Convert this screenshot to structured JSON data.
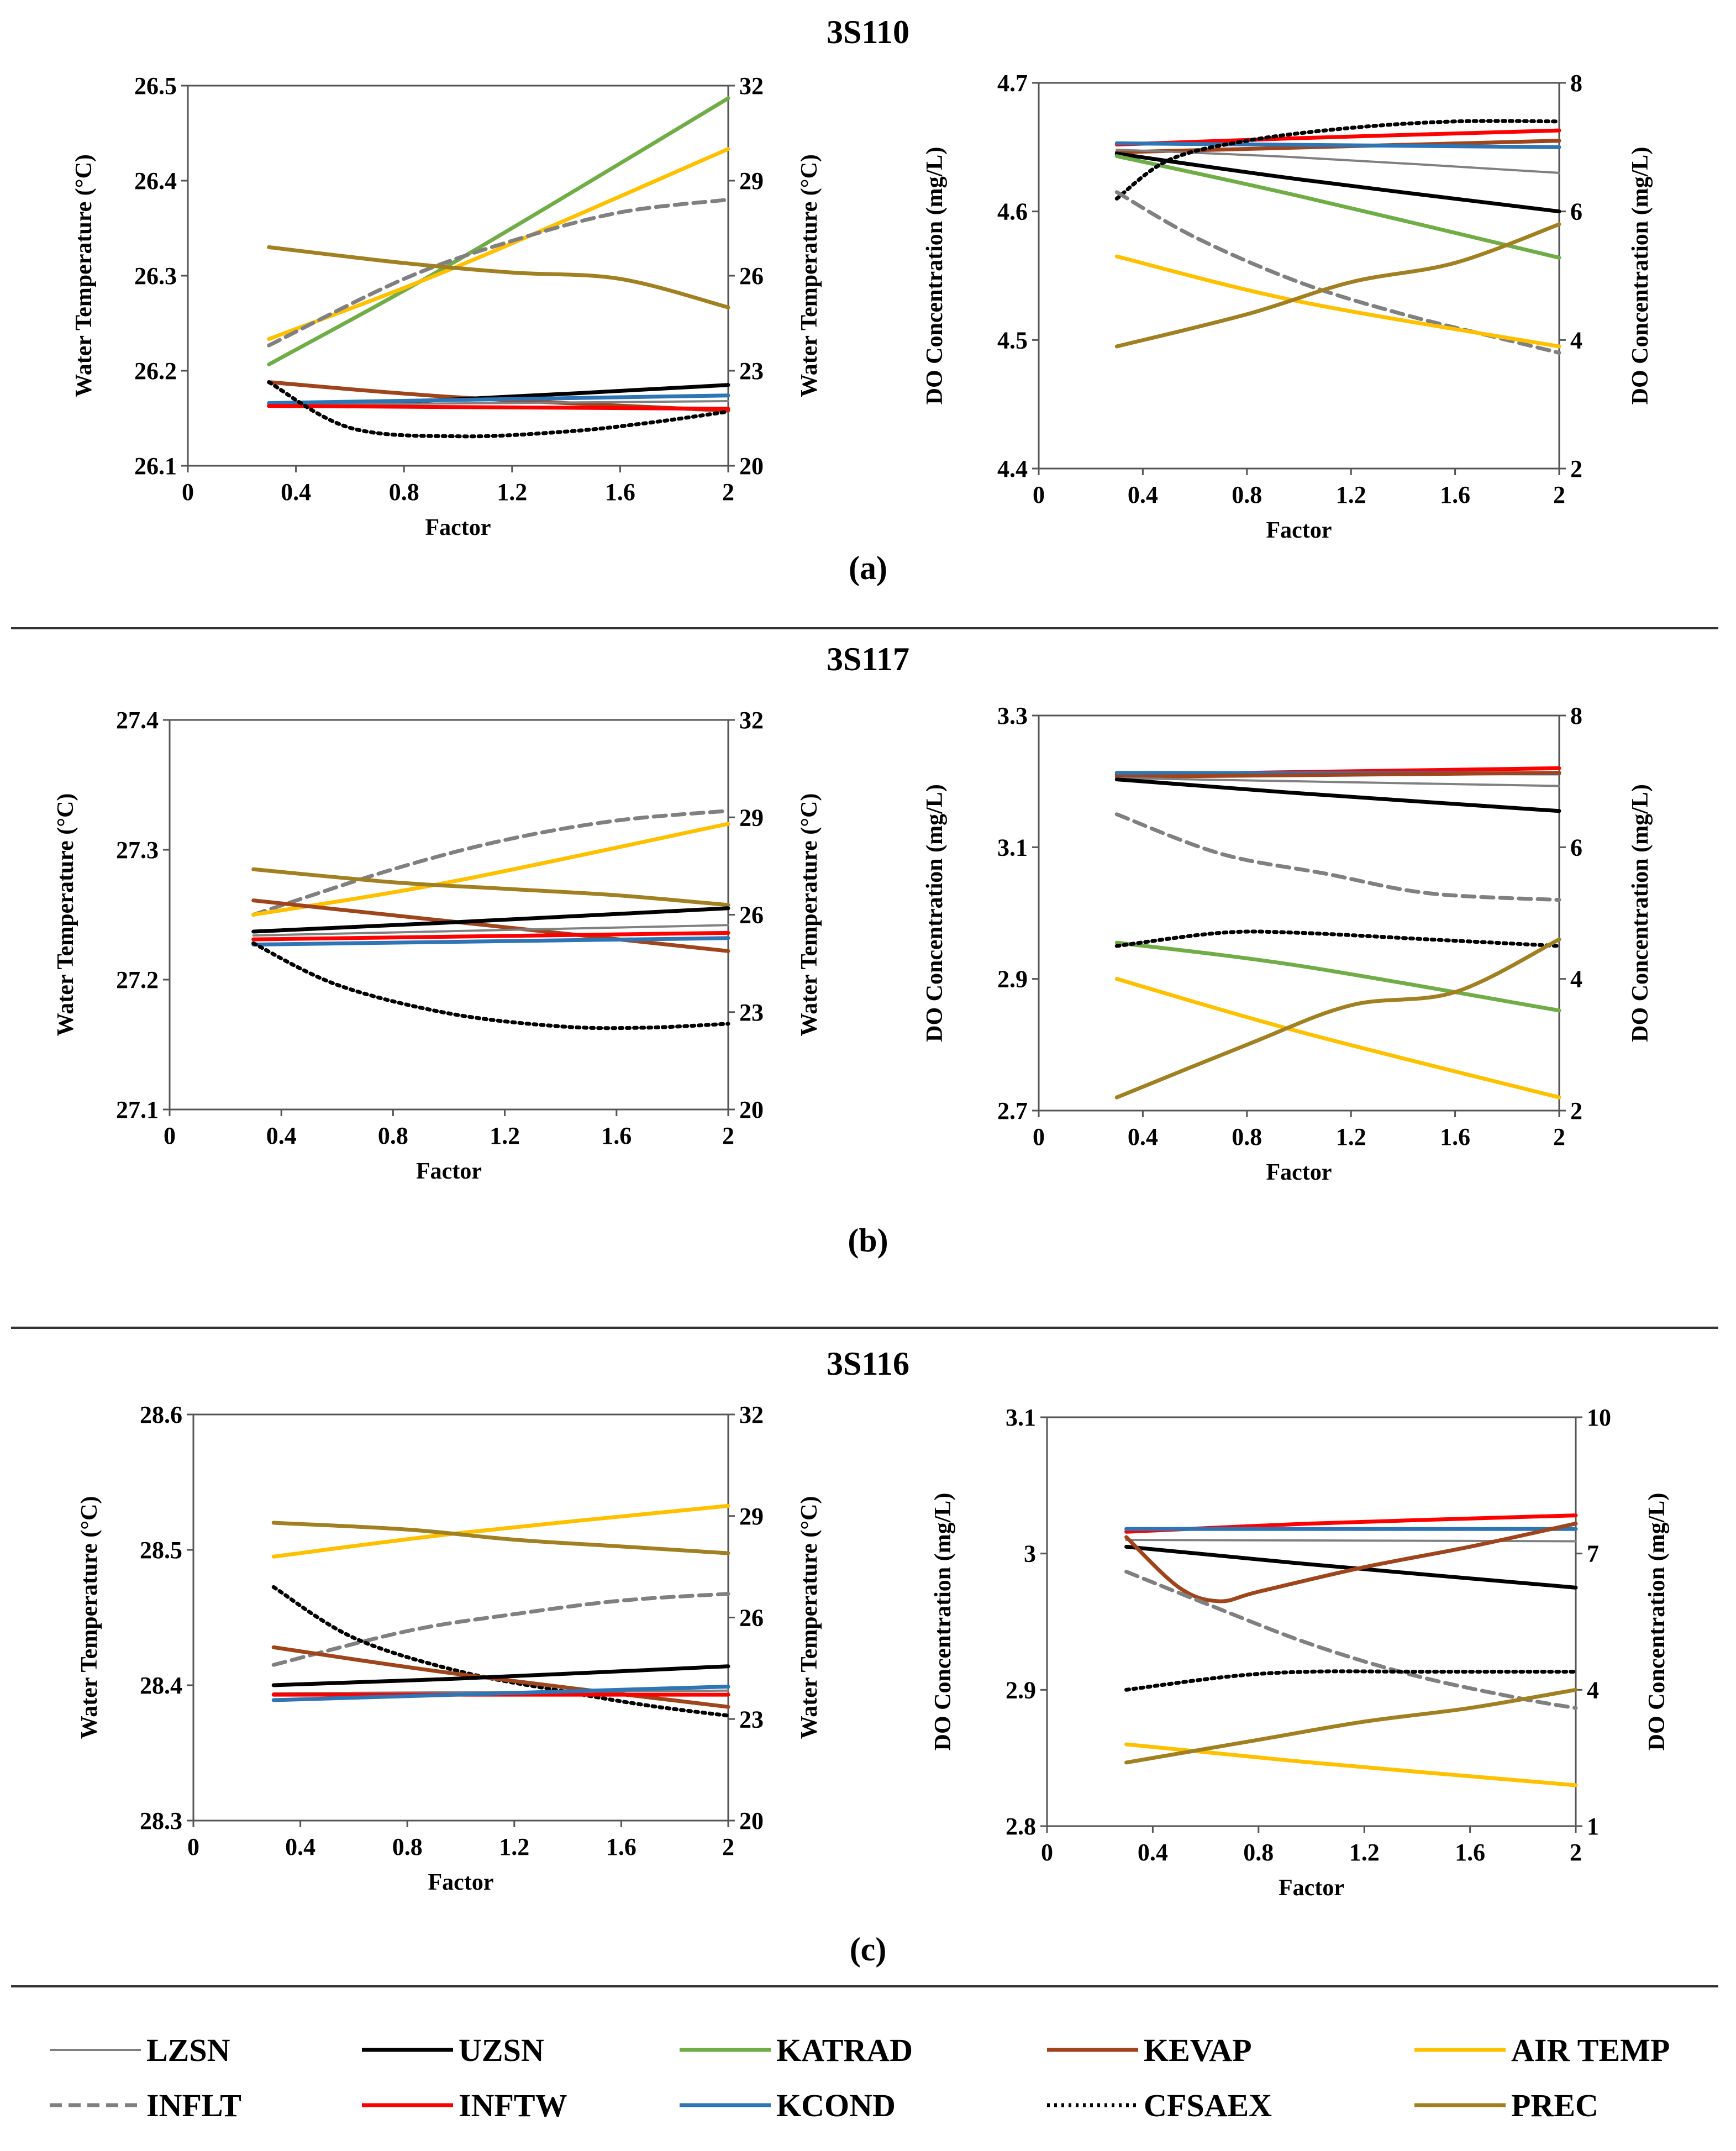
{
  "series_styles": [
    {
      "name": "LZSN",
      "color": "#808080",
      "dash": ""
    },
    {
      "name": "UZSN",
      "color": "#000000",
      "dash": ""
    },
    {
      "name": "KATRAD",
      "color": "#70ad47",
      "dash": ""
    },
    {
      "name": "KEVAP",
      "color": "#a0441c",
      "dash": ""
    },
    {
      "name": "AIR TEMP",
      "color": "#ffc000",
      "dash": ""
    },
    {
      "name": "INFLT",
      "color": "#808080",
      "dash": "22,12"
    },
    {
      "name": "INFTW",
      "color": "#ff0000",
      "dash": ""
    },
    {
      "name": "KCOND",
      "color": "#2e75b6",
      "dash": ""
    },
    {
      "name": "CFSAEX",
      "color": "#000000",
      "dash": "5,8"
    },
    {
      "name": "PREC",
      "color": "#a08020",
      "dash": ""
    }
  ],
  "legend": [
    "LZSN",
    "UZSN",
    "KATRAD",
    "KEVAP",
    "AIR TEMP",
    "INFLT",
    "INFTW",
    "KCOND",
    "CFSAEX",
    "PREC"
  ],
  "chart_data": [
    {
      "id": "a-temp",
      "type": "line",
      "panel": "(a)",
      "station": "3S110",
      "xlabel": "Factor",
      "ylabel": "Water Temperature (°C)",
      "y2label": "Water Temperature (°C)",
      "xlim": [
        0,
        2
      ],
      "xticks": [
        "0",
        "0.4",
        "0.8",
        "1.2",
        "1.6",
        "2"
      ],
      "ylim": [
        26.1,
        26.5
      ],
      "yticks": [
        "26.1",
        "26.2",
        "26.3",
        "26.4",
        "26.5"
      ],
      "y2lim": [
        20,
        32
      ],
      "y2ticks": [
        "20",
        "23",
        "26",
        "29",
        "32"
      ],
      "series": [
        {
          "name": "KATRAD",
          "axis": "right",
          "x": [
            0.3,
            1.0,
            2.0
          ],
          "y": [
            23.2,
            26.5,
            31.6
          ]
        },
        {
          "name": "AIR TEMP",
          "axis": "right",
          "x": [
            0.3,
            1.0,
            2.0
          ],
          "y": [
            24.0,
            26.3,
            30.0
          ]
        },
        {
          "name": "INFLT",
          "axis": "right",
          "x": [
            0.3,
            0.8,
            1.2,
            1.6,
            2.0
          ],
          "y": [
            23.8,
            25.9,
            27.1,
            28.0,
            28.4
          ]
        },
        {
          "name": "PREC",
          "axis": "right",
          "x": [
            0.3,
            0.8,
            1.2,
            1.6,
            2.0
          ],
          "y": [
            26.9,
            26.4,
            26.1,
            25.9,
            25.0
          ]
        },
        {
          "name": "KEVAP",
          "axis": "left",
          "x": [
            0.3,
            1.0,
            2.0
          ],
          "y": [
            26.188,
            26.172,
            26.158
          ]
        },
        {
          "name": "UZSN",
          "axis": "left",
          "x": [
            0.3,
            1.0,
            2.0
          ],
          "y": [
            26.163,
            26.17,
            26.185
          ]
        },
        {
          "name": "LZSN",
          "axis": "left",
          "x": [
            0.3,
            2.0
          ],
          "y": [
            26.164,
            26.168
          ]
        },
        {
          "name": "KCOND",
          "axis": "left",
          "x": [
            0.3,
            2.0
          ],
          "y": [
            26.166,
            26.174
          ]
        },
        {
          "name": "INFTW",
          "axis": "left",
          "x": [
            0.3,
            2.0
          ],
          "y": [
            26.163,
            26.16
          ]
        },
        {
          "name": "CFSAEX",
          "axis": "left",
          "x": [
            0.3,
            0.6,
            1.0,
            1.4,
            1.7,
            2.0
          ],
          "y": [
            26.188,
            26.14,
            26.131,
            26.136,
            26.145,
            26.157
          ]
        }
      ]
    },
    {
      "id": "a-do",
      "type": "line",
      "panel": "(a)",
      "station": "3S110",
      "xlabel": "Factor",
      "ylabel": "DO Concentration (mg/L)",
      "y2label": "DO Concentration (mg/L)",
      "xlim": [
        0,
        2
      ],
      "xticks": [
        "0",
        "0.4",
        "0.8",
        "1.2",
        "1.6",
        "2"
      ],
      "ylim": [
        4.4,
        4.7
      ],
      "yticks": [
        "4.4",
        "4.5",
        "4.6",
        "4.7"
      ],
      "y2lim": [
        2,
        8
      ],
      "y2ticks": [
        "2",
        "4",
        "6",
        "8"
      ],
      "series": [
        {
          "name": "INFTW",
          "axis": "left",
          "x": [
            0.3,
            1.0,
            2.0
          ],
          "y": [
            4.652,
            4.657,
            4.663
          ]
        },
        {
          "name": "KEVAP",
          "axis": "left",
          "x": [
            0.3,
            2.0
          ],
          "y": [
            4.646,
            4.655
          ]
        },
        {
          "name": "KCOND",
          "axis": "left",
          "x": [
            0.3,
            2.0
          ],
          "y": [
            4.653,
            4.65
          ]
        },
        {
          "name": "LZSN",
          "axis": "left",
          "x": [
            0.3,
            1.0,
            2.0
          ],
          "y": [
            4.648,
            4.642,
            4.63
          ]
        },
        {
          "name": "UZSN",
          "axis": "left",
          "x": [
            0.3,
            1.0,
            2.0
          ],
          "y": [
            4.645,
            4.625,
            4.6
          ]
        },
        {
          "name": "KATRAD",
          "axis": "left",
          "x": [
            0.3,
            1.0,
            2.0
          ],
          "y": [
            4.643,
            4.612,
            4.564
          ]
        },
        {
          "name": "CFSAEX",
          "axis": "right",
          "x": [
            0.3,
            0.5,
            0.8,
            1.2,
            1.6,
            2.0
          ],
          "y": [
            6.2,
            6.8,
            7.1,
            7.3,
            7.4,
            7.4
          ]
        },
        {
          "name": "INFLT",
          "axis": "right",
          "x": [
            0.3,
            0.6,
            1.0,
            1.4,
            1.8,
            2.0
          ],
          "y": [
            6.3,
            5.6,
            4.9,
            4.4,
            4.0,
            3.8
          ]
        },
        {
          "name": "AIR TEMP",
          "axis": "right",
          "x": [
            0.3,
            1.0,
            2.0
          ],
          "y": [
            5.3,
            4.6,
            3.9
          ]
        },
        {
          "name": "PREC",
          "axis": "right",
          "x": [
            0.3,
            0.8,
            1.2,
            1.6,
            2.0
          ],
          "y": [
            3.9,
            4.4,
            4.9,
            5.2,
            5.8
          ]
        }
      ]
    },
    {
      "id": "b-temp",
      "type": "line",
      "panel": "(b)",
      "station": "3S117",
      "xlabel": "Factor",
      "ylabel": "Water Temperature (°C)",
      "y2label": "Water Temperature (°C)",
      "xlim": [
        0,
        2
      ],
      "xticks": [
        "0",
        "0.4",
        "0.8",
        "1.2",
        "1.6",
        "2"
      ],
      "ylim": [
        27.1,
        27.4
      ],
      "yticks": [
        "27.1",
        "27.2",
        "27.3",
        "27.4"
      ],
      "y2lim": [
        20,
        32
      ],
      "y2ticks": [
        "20",
        "23",
        "26",
        "29",
        "32"
      ],
      "series": [
        {
          "name": "INFLT",
          "axis": "right",
          "x": [
            0.3,
            0.8,
            1.2,
            1.6,
            2.0
          ],
          "y": [
            26.0,
            27.4,
            28.3,
            28.9,
            29.2
          ]
        },
        {
          "name": "AIR TEMP",
          "axis": "right",
          "x": [
            0.3,
            1.0,
            2.0
          ],
          "y": [
            26.0,
            27.0,
            28.8
          ]
        },
        {
          "name": "PREC",
          "axis": "right",
          "x": [
            0.3,
            0.8,
            1.2,
            1.6,
            2.0
          ],
          "y": [
            27.4,
            27.0,
            26.8,
            26.6,
            26.3
          ]
        },
        {
          "name": "KEVAP",
          "axis": "left",
          "x": [
            0.3,
            1.0,
            2.0
          ],
          "y": [
            27.261,
            27.245,
            27.222
          ]
        },
        {
          "name": "UZSN",
          "axis": "left",
          "x": [
            0.3,
            1.0,
            2.0
          ],
          "y": [
            27.237,
            27.244,
            27.255
          ]
        },
        {
          "name": "LZSN",
          "axis": "left",
          "x": [
            0.3,
            2.0
          ],
          "y": [
            27.234,
            27.242
          ]
        },
        {
          "name": "KCOND",
          "axis": "left",
          "x": [
            0.3,
            2.0
          ],
          "y": [
            27.227,
            27.232
          ]
        },
        {
          "name": "INFTW",
          "axis": "left",
          "x": [
            0.3,
            2.0
          ],
          "y": [
            27.231,
            27.236
          ]
        },
        {
          "name": "CFSAEX",
          "axis": "left",
          "x": [
            0.3,
            0.6,
            1.0,
            1.4,
            1.7,
            2.0
          ],
          "y": [
            27.228,
            27.196,
            27.174,
            27.164,
            27.163,
            27.166
          ]
        }
      ]
    },
    {
      "id": "b-do",
      "type": "line",
      "panel": "(b)",
      "station": "3S117",
      "xlabel": "Factor",
      "ylabel": "DO Concentration (mg/L)",
      "y2label": "DO Concentration (mg/L)",
      "xlim": [
        0,
        2
      ],
      "xticks": [
        "0",
        "0.4",
        "0.8",
        "1.2",
        "1.6",
        "2"
      ],
      "ylim": [
        2.7,
        3.3
      ],
      "yticks": [
        "2.7",
        "2.9",
        "3.1",
        "3.3"
      ],
      "y2lim": [
        2,
        8
      ],
      "y2ticks": [
        "2",
        "4",
        "6",
        "8"
      ],
      "series": [
        {
          "name": "INFTW",
          "axis": "left",
          "x": [
            0.3,
            2.0
          ],
          "y": [
            3.21,
            3.22
          ]
        },
        {
          "name": "KCOND",
          "axis": "left",
          "x": [
            0.3,
            2.0
          ],
          "y": [
            3.213,
            3.212
          ]
        },
        {
          "name": "KEVAP",
          "axis": "left",
          "x": [
            0.3,
            2.0
          ],
          "y": [
            3.207,
            3.213
          ]
        },
        {
          "name": "LZSN",
          "axis": "left",
          "x": [
            0.3,
            2.0
          ],
          "y": [
            3.205,
            3.193
          ]
        },
        {
          "name": "UZSN",
          "axis": "left",
          "x": [
            0.3,
            1.0,
            2.0
          ],
          "y": [
            3.203,
            3.182,
            3.155
          ]
        },
        {
          "name": "KATRAD",
          "axis": "left",
          "x": [
            0.3,
            1.0,
            2.0
          ],
          "y": [
            2.955,
            2.92,
            2.852
          ]
        },
        {
          "name": "INFLT",
          "axis": "right",
          "x": [
            0.3,
            0.7,
            1.1,
            1.5,
            2.0
          ],
          "y": [
            6.5,
            5.9,
            5.6,
            5.3,
            5.2
          ]
        },
        {
          "name": "CFSAEX",
          "axis": "right",
          "x": [
            0.3,
            0.7,
            1.0,
            1.5,
            2.0
          ],
          "y": [
            4.5,
            4.7,
            4.7,
            4.6,
            4.5
          ]
        },
        {
          "name": "AIR TEMP",
          "axis": "right",
          "x": [
            0.3,
            1.0,
            2.0
          ],
          "y": [
            4.0,
            3.2,
            2.2
          ]
        },
        {
          "name": "PREC",
          "axis": "right",
          "x": [
            0.3,
            0.8,
            1.2,
            1.6,
            2.0
          ],
          "y": [
            2.2,
            3.0,
            3.6,
            3.8,
            4.6
          ]
        }
      ]
    },
    {
      "id": "c-temp",
      "type": "line",
      "panel": "(c)",
      "station": "3S116",
      "xlabel": "Factor",
      "ylabel": "Water Temperature (°C)",
      "y2label": "Water Temperature (°C)",
      "xlim": [
        0,
        2
      ],
      "xticks": [
        "0",
        "0.4",
        "0.8",
        "1.2",
        "1.6",
        "2"
      ],
      "ylim": [
        28.3,
        28.6
      ],
      "yticks": [
        "28.3",
        "28.4",
        "28.5",
        "28.6"
      ],
      "y2lim": [
        20,
        32
      ],
      "y2ticks": [
        "20",
        "23",
        "26",
        "29",
        "32"
      ],
      "series": [
        {
          "name": "AIR TEMP",
          "axis": "right",
          "x": [
            0.3,
            1.0,
            2.0
          ],
          "y": [
            27.8,
            28.5,
            29.3
          ]
        },
        {
          "name": "PREC",
          "axis": "right",
          "x": [
            0.3,
            0.8,
            1.2,
            1.6,
            2.0
          ],
          "y": [
            28.8,
            28.6,
            28.3,
            28.1,
            27.9
          ]
        },
        {
          "name": "INFLT",
          "axis": "right",
          "x": [
            0.3,
            0.8,
            1.2,
            1.6,
            2.0
          ],
          "y": [
            24.6,
            25.6,
            26.1,
            26.5,
            26.7
          ]
        },
        {
          "name": "CFSAEX",
          "axis": "right",
          "x": [
            0.3,
            0.6,
            1.0,
            1.4,
            1.7,
            2.0
          ],
          "y": [
            26.9,
            25.4,
            24.4,
            23.8,
            23.4,
            23.1
          ]
        },
        {
          "name": "KEVAP",
          "axis": "left",
          "x": [
            0.3,
            1.0,
            2.0
          ],
          "y": [
            28.428,
            28.408,
            28.384
          ]
        },
        {
          "name": "UZSN",
          "axis": "left",
          "x": [
            0.3,
            1.0,
            2.0
          ],
          "y": [
            28.4,
            28.405,
            28.414
          ]
        },
        {
          "name": "LZSN",
          "axis": "left",
          "x": [
            0.3,
            2.0
          ],
          "y": [
            28.394,
            28.396
          ]
        },
        {
          "name": "INFTW",
          "axis": "left",
          "x": [
            0.3,
            2.0
          ],
          "y": [
            28.393,
            28.393
          ]
        },
        {
          "name": "KCOND",
          "axis": "left",
          "x": [
            0.3,
            2.0
          ],
          "y": [
            28.389,
            28.399
          ]
        }
      ]
    },
    {
      "id": "c-do",
      "type": "line",
      "panel": "(c)",
      "station": "3S116",
      "xlabel": "Factor",
      "ylabel": "DO Concentration (mg/L)",
      "y2label": "DO Concentration (mg/L)",
      "xlim": [
        0,
        2
      ],
      "xticks": [
        "0",
        "0.4",
        "0.8",
        "1.2",
        "1.6",
        "2"
      ],
      "ylim": [
        2.8,
        3.1
      ],
      "yticks": [
        "2.8",
        "2.9",
        "3",
        "3.1"
      ],
      "y2lim": [
        1,
        10
      ],
      "y2ticks": [
        "1",
        "4",
        "7",
        "10"
      ],
      "series": [
        {
          "name": "INFTW",
          "axis": "left",
          "x": [
            0.3,
            1.0,
            2.0
          ],
          "y": [
            3.016,
            3.022,
            3.028
          ]
        },
        {
          "name": "KCOND",
          "axis": "left",
          "x": [
            0.3,
            2.0
          ],
          "y": [
            3.018,
            3.018
          ]
        },
        {
          "name": "LZSN",
          "axis": "left",
          "x": [
            0.3,
            2.0
          ],
          "y": [
            3.01,
            3.009
          ]
        },
        {
          "name": "UZSN",
          "axis": "left",
          "x": [
            0.3,
            1.0,
            2.0
          ],
          "y": [
            3.005,
            2.992,
            2.975
          ]
        },
        {
          "name": "KEVAP",
          "axis": "left",
          "x": [
            0.3,
            0.5,
            0.65,
            0.8,
            1.2,
            1.6,
            2.0
          ],
          "y": [
            3.012,
            2.975,
            2.965,
            2.972,
            2.99,
            3.005,
            3.022
          ]
        },
        {
          "name": "INFLT",
          "axis": "right",
          "x": [
            0.3,
            0.6,
            1.0,
            1.4,
            1.8,
            2.0
          ],
          "y": [
            6.6,
            5.9,
            5.0,
            4.3,
            3.8,
            3.6
          ]
        },
        {
          "name": "CFSAEX",
          "axis": "right",
          "x": [
            0.3,
            0.7,
            1.0,
            1.4,
            2.0
          ],
          "y": [
            4.0,
            4.3,
            4.4,
            4.4,
            4.4
          ]
        },
        {
          "name": "AIR TEMP",
          "axis": "right",
          "x": [
            0.3,
            1.0,
            2.0
          ],
          "y": [
            2.8,
            2.4,
            1.9
          ]
        },
        {
          "name": "PREC",
          "axis": "right",
          "x": [
            0.3,
            0.8,
            1.2,
            1.6,
            2.0
          ],
          "y": [
            2.4,
            2.9,
            3.3,
            3.6,
            4.0
          ]
        }
      ]
    }
  ]
}
